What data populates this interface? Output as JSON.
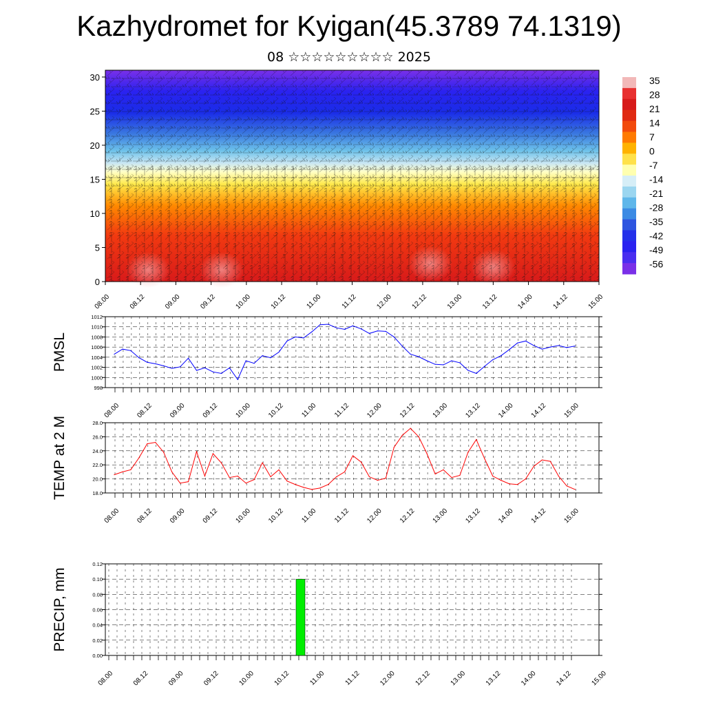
{
  "title": "Kazhydromet for Kyigan(45.3789 74.1319)",
  "subtitle": "08 ☆☆☆☆☆☆☆☆☆ 2025",
  "time_labels": [
    "08.00",
    "08.12",
    "09.00",
    "09.12",
    "10.00",
    "10.12",
    "11.00",
    "11.12",
    "12.00",
    "12.12",
    "13.00",
    "13.12",
    "14.00",
    "14.12",
    "15.00"
  ],
  "colors": {
    "pmsl_line": "#0000ff",
    "temp_line": "#ff0000",
    "precip_bar": "#00ee00"
  },
  "chart_data": [
    {
      "type": "heatmap",
      "id": "cross-section",
      "yticks": [
        "0",
        "5",
        "10",
        "15",
        "20",
        "25",
        "30"
      ],
      "ylim": [
        0,
        31
      ],
      "legend_labels": [
        "35",
        "28",
        "21",
        "14",
        "7",
        "0",
        "-7",
        "-14",
        "-21",
        "-28",
        "-35",
        "-42",
        "-49",
        "-56"
      ],
      "overlay": "wind barbs"
    },
    {
      "type": "line",
      "id": "pmsl",
      "ylabel": "PMSL",
      "ylim": [
        998,
        1012
      ],
      "yticks": [
        "998",
        "1000",
        "1002",
        "1004",
        "1006",
        "1008",
        "1010",
        "1012"
      ],
      "values": [
        1004.6,
        1005.6,
        1005.3,
        1003.9,
        1003.0,
        1002.7,
        1002.3,
        1001.8,
        1002.1,
        1003.8,
        1001.4,
        1001.9,
        1001.1,
        1000.8,
        1001.9,
        999.6,
        1003.3,
        1002.8,
        1004.3,
        1003.9,
        1005.0,
        1007.2,
        1008.0,
        1007.8,
        1009.0,
        1010.4,
        1010.5,
        1009.8,
        1009.5,
        1010.2,
        1009.6,
        1008.7,
        1009.2,
        1009.1,
        1008.0,
        1006.2,
        1004.6,
        1004.1,
        1003.3,
        1002.6,
        1002.5,
        1003.3,
        1002.9,
        1001.4,
        1000.8,
        1002.2,
        1003.5,
        1004.3,
        1005.5,
        1006.8,
        1007.2,
        1006.3,
        1005.6,
        1006.0,
        1006.3,
        1005.9,
        1006.2
      ]
    },
    {
      "type": "line",
      "id": "temp",
      "ylabel": "TEMP at 2 M",
      "ylim": [
        18,
        28
      ],
      "yticks": [
        "18.0",
        "20.0",
        "22.0",
        "24.0",
        "26.0",
        "28.0"
      ],
      "values": [
        20.6,
        21.0,
        21.3,
        23.0,
        25.0,
        25.2,
        23.8,
        21.0,
        19.4,
        19.6,
        23.9,
        20.4,
        23.6,
        22.3,
        20.2,
        20.4,
        19.4,
        19.9,
        22.3,
        20.3,
        21.3,
        19.7,
        19.2,
        18.8,
        18.5,
        18.7,
        19.2,
        20.3,
        21.0,
        23.3,
        22.4,
        20.3,
        19.8,
        20.1,
        24.5,
        26.2,
        27.2,
        26.0,
        23.6,
        20.7,
        21.3,
        20.2,
        20.5,
        23.8,
        25.6,
        22.9,
        20.4,
        19.8,
        19.3,
        19.2,
        20.0,
        21.8,
        22.7,
        22.5,
        20.4,
        19.0,
        18.5
      ]
    },
    {
      "type": "bar",
      "id": "precip",
      "ylabel": "PRECIP, mm",
      "ylim": [
        0,
        0.12
      ],
      "yticks": [
        "0.00",
        "0.02",
        "0.04",
        "0.06",
        "0.08",
        "0.10",
        "0.12"
      ],
      "bars": [
        {
          "x": "10.18",
          "value": 0.1
        }
      ]
    }
  ]
}
